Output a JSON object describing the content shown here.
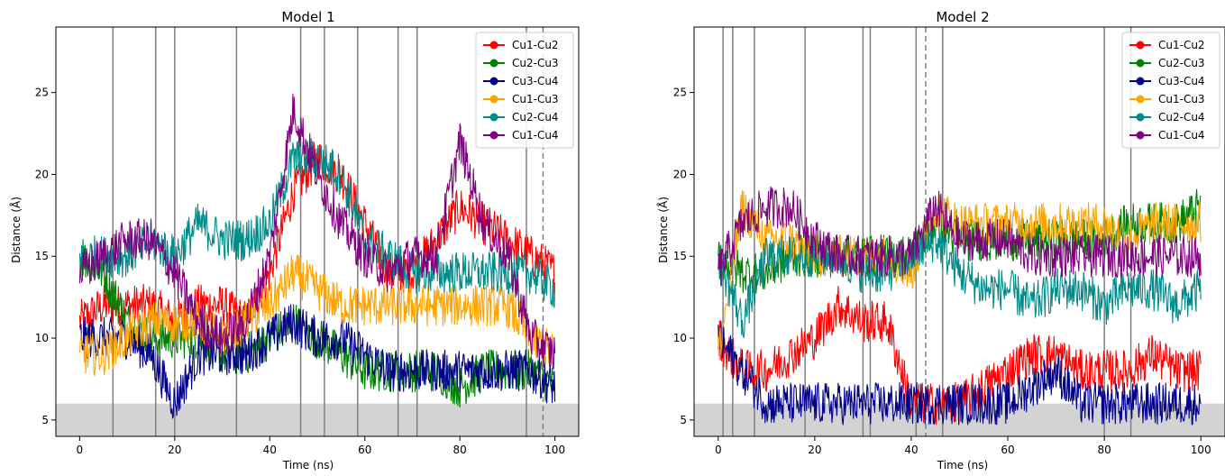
{
  "chart_data": [
    {
      "type": "line",
      "title": "Model 1",
      "xlabel": "Time (ns)",
      "ylabel": "Distance (Å)",
      "xlim": [
        -5,
        105
      ],
      "ylim": [
        4,
        29
      ],
      "xticks": [
        0,
        20,
        40,
        60,
        80,
        100
      ],
      "yticks": [
        5,
        10,
        15,
        20,
        25
      ],
      "threshold_band": [
        4,
        6
      ],
      "vlines_solid": [
        7,
        16,
        20,
        33,
        46.5,
        51.5,
        58.5,
        67,
        71,
        94
      ],
      "vlines_dashed": [
        97.5
      ],
      "legend": "top-right",
      "x": [
        0,
        5,
        10,
        15,
        20,
        25,
        30,
        35,
        40,
        45,
        50,
        55,
        60,
        65,
        70,
        75,
        80,
        85,
        90,
        95,
        100
      ],
      "series": [
        {
          "name": "Cu1-Cu2",
          "color": "#ff0000",
          "values": [
            11,
            12,
            12,
            12,
            11,
            12,
            12,
            11,
            14,
            19,
            21,
            20,
            17,
            14,
            14,
            16,
            18,
            17,
            16,
            15,
            14
          ]
        },
        {
          "name": "Cu2-Cu3",
          "color": "#008000",
          "values": [
            15,
            14,
            11,
            10,
            10,
            10,
            9,
            9,
            10,
            11,
            10,
            9,
            8,
            8,
            8,
            8,
            7,
            8,
            8,
            8,
            7
          ]
        },
        {
          "name": "Cu3-Cu4",
          "color": "#00008b",
          "values": [
            10,
            10,
            10,
            9,
            6,
            9,
            9,
            9,
            10,
            11,
            10,
            10,
            9,
            8,
            8,
            8,
            8,
            8,
            8,
            8,
            7
          ]
        },
        {
          "name": "Cu1-Cu3",
          "color": "#ffa500",
          "values": [
            9,
            9,
            10,
            11,
            11,
            11,
            10,
            11,
            12,
            14,
            13,
            12,
            12,
            12,
            12,
            12,
            12,
            12,
            12,
            10,
            9
          ]
        },
        {
          "name": "Cu2-Cu4",
          "color": "#008b8b",
          "values": [
            15,
            15,
            15,
            16,
            15,
            17,
            16,
            16,
            17,
            21,
            21,
            20,
            16,
            15,
            14,
            14,
            14,
            14,
            14,
            14,
            13
          ]
        },
        {
          "name": "Cu1-Cu4",
          "color": "#800080",
          "values": [
            14,
            15,
            16,
            16,
            14,
            11,
            10,
            11,
            15,
            24,
            20,
            17,
            15,
            14,
            15,
            15,
            22,
            17,
            15,
            10,
            9
          ]
        }
      ]
    },
    {
      "type": "line",
      "title": "Model 2",
      "xlabel": "Time (ns)",
      "ylabel": "Distance (Å)",
      "xlim": [
        -5,
        105
      ],
      "ylim": [
        4,
        29
      ],
      "xticks": [
        0,
        20,
        40,
        60,
        80,
        100
      ],
      "yticks": [
        5,
        10,
        15,
        20,
        25
      ],
      "threshold_band": [
        4,
        6
      ],
      "vlines_solid": [
        1,
        3,
        7.5,
        18,
        30,
        31.5,
        41,
        46.5,
        80,
        85.5
      ],
      "vlines_dashed": [
        43
      ],
      "legend": "top-right",
      "x": [
        0,
        5,
        10,
        15,
        20,
        25,
        30,
        35,
        40,
        45,
        50,
        55,
        60,
        65,
        70,
        75,
        80,
        85,
        90,
        95,
        100
      ],
      "series": [
        {
          "name": "Cu1-Cu2",
          "color": "#ff0000",
          "values": [
            10,
            8,
            8,
            9,
            10,
            12,
            11,
            11,
            6,
            6,
            6,
            7,
            8,
            9,
            9,
            8,
            8,
            8,
            9,
            8,
            8
          ]
        },
        {
          "name": "Cu2-Cu3",
          "color": "#008000",
          "values": [
            15,
            14,
            14,
            15,
            15,
            15,
            15,
            15,
            15,
            17,
            16,
            16,
            16,
            16,
            16,
            16,
            16,
            17,
            17,
            17,
            18
          ]
        },
        {
          "name": "Cu3-Cu4",
          "color": "#00008b",
          "values": [
            10,
            8,
            6,
            6,
            6,
            6,
            6,
            6,
            6,
            6,
            6,
            6,
            6,
            7,
            8,
            6,
            6,
            6,
            6,
            6,
            6
          ]
        },
        {
          "name": "Cu1-Cu3",
          "color": "#ffa500",
          "values": [
            9,
            18,
            16,
            16,
            15,
            15,
            15,
            15,
            14,
            18,
            17,
            17,
            17,
            17,
            17,
            17,
            17,
            16,
            17,
            17,
            17
          ]
        },
        {
          "name": "Cu2-Cu4",
          "color": "#008b8b",
          "values": [
            15,
            11,
            15,
            15,
            15,
            15,
            14,
            14,
            15,
            16,
            14,
            13,
            13,
            12,
            13,
            13,
            12,
            13,
            13,
            12,
            13
          ]
        },
        {
          "name": "Cu1-Cu4",
          "color": "#800080",
          "values": [
            14,
            17,
            18,
            18,
            16,
            15,
            15,
            15,
            15,
            18,
            16,
            16,
            16,
            15,
            15,
            15,
            15,
            15,
            15,
            15,
            15
          ]
        }
      ]
    }
  ]
}
